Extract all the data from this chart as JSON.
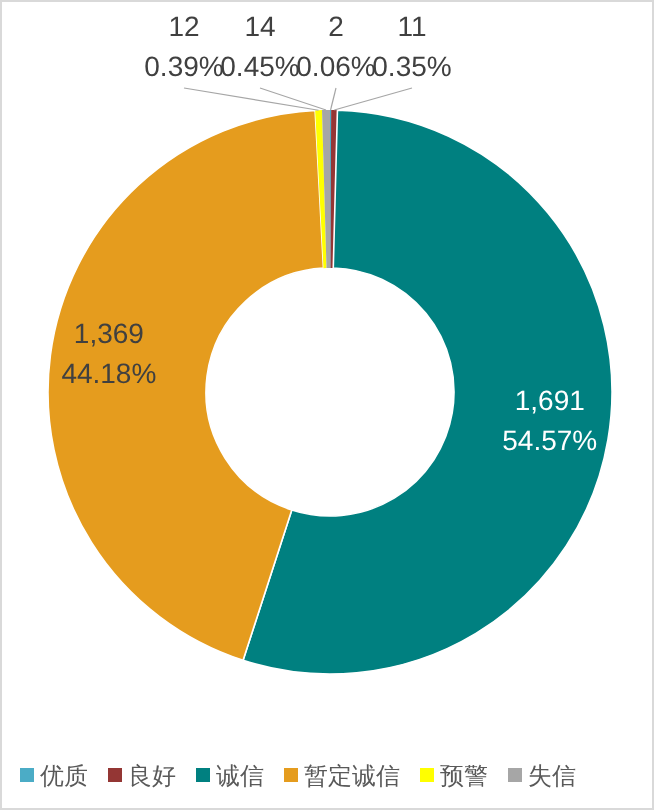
{
  "chart_data": {
    "type": "donut",
    "categories": [
      "优质",
      "良好",
      "诚信",
      "暂定诚信",
      "预警",
      "失信"
    ],
    "values": [
      2,
      11,
      1691,
      1369,
      12,
      14
    ],
    "colors": [
      "#4bacc6",
      "#943634",
      "#008080",
      "#e59c1e",
      "#ffff00",
      "#a6a6a6"
    ],
    "value_labels": [
      "2 0.06%",
      "11 0.35%",
      "1,691 54.57%",
      "1,369 44.18%",
      "12 0.39%",
      "14 0.45%"
    ],
    "legend": "bottom"
  }
}
